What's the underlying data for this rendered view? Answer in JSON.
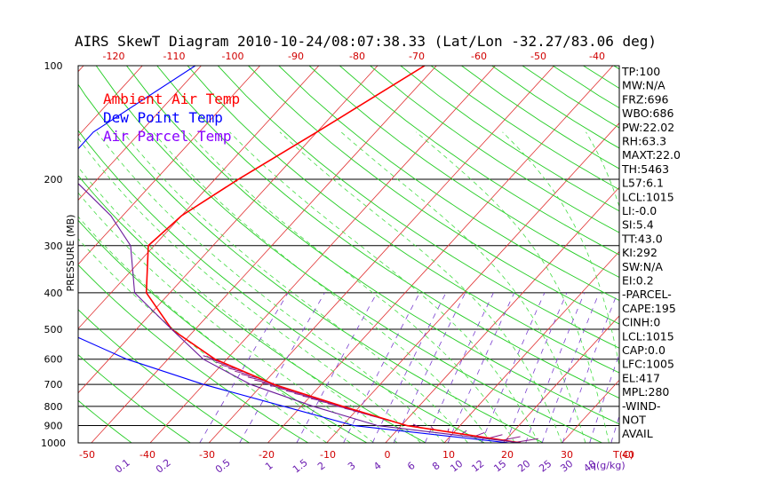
{
  "chart_data": {
    "type": "line",
    "title": "AIRS SkewT Diagram 2010-10-24/08:07:38.33 (Lat/Lon -32.27/83.06 deg)",
    "ylabel": "PRESSURE (MB)",
    "pressure_ticks": [
      100,
      200,
      300,
      400,
      500,
      600,
      700,
      800,
      900,
      1000
    ],
    "top_temp_ticks": [
      -120,
      -110,
      -100,
      -90,
      -80,
      -70,
      -60,
      -50,
      -40
    ],
    "bottom_temp_ticks": [
      -50,
      -40,
      -30,
      -20,
      -10,
      0,
      10,
      20,
      30,
      40
    ],
    "bottom_temp_unit": "T(C)",
    "mixing_ratio_labels": [
      "0.1",
      "0.2",
      "0.5",
      "1",
      "1.5",
      "2",
      "3",
      "4",
      "6",
      "8",
      "10",
      "12",
      "15",
      "20",
      "25",
      "30",
      "40"
    ],
    "mixing_ratio_unit": "q(g/kg)",
    "legend": [
      {
        "name": "Ambient Air Temp",
        "color": "#ff0000"
      },
      {
        "name": "Dew Point Temp",
        "color": "#0000ff"
      },
      {
        "name": "Air Parcel Temp",
        "color": "#8800ff"
      }
    ],
    "series": [
      {
        "name": "Ambient Air Temp",
        "color": "#ff0000",
        "p": [
          100,
          150,
          200,
          250,
          300,
          400,
          500,
          600,
          700,
          800,
          900,
          1000
        ],
        "t": [
          -62,
          -70,
          -76,
          -80,
          -81,
          -74,
          -64,
          -52,
          -38,
          -23,
          -9,
          13
        ]
      },
      {
        "name": "Dew Point Temp",
        "color": "#0000ff",
        "p": [
          100,
          150,
          200,
          250,
          300,
          400,
          500,
          600,
          700,
          800,
          900,
          1000
        ],
        "t": [
          -101,
          -108,
          -108,
          -108,
          -106,
          -95,
          -83,
          -67,
          -50,
          -33,
          -18,
          11
        ]
      },
      {
        "name": "Air Parcel Temp",
        "color": "#6a1b9a",
        "p": [
          100,
          150,
          200,
          250,
          300,
          400,
          500,
          600,
          700,
          800,
          900,
          1000
        ],
        "t": [
          -126,
          -115,
          -104,
          -92,
          -84,
          -76,
          -64,
          -54,
          -42,
          -28,
          -14,
          13
        ]
      }
    ],
    "ylim": [
      1000,
      100
    ]
  },
  "indices": [
    "TP:100",
    "MW:N/A",
    "FRZ:696",
    "WBO:686",
    "PW:22.02",
    "RH:63.3",
    "MAXT:22.0",
    "TH:5463",
    "L57:6.1",
    "LCL:1015",
    "LI:-0.0",
    "SI:5.4",
    "TT:43.0",
    "KI:292",
    "SW:N/A",
    "EI:0.2",
    "-PARCEL-",
    "CAPE:195",
    "CINH:0",
    "LCL:1015",
    "CAP:0.0",
    "LFC:1005",
    "EL:417",
    "MPL:280",
    "-WIND-",
    "NOT",
    "AVAIL"
  ]
}
